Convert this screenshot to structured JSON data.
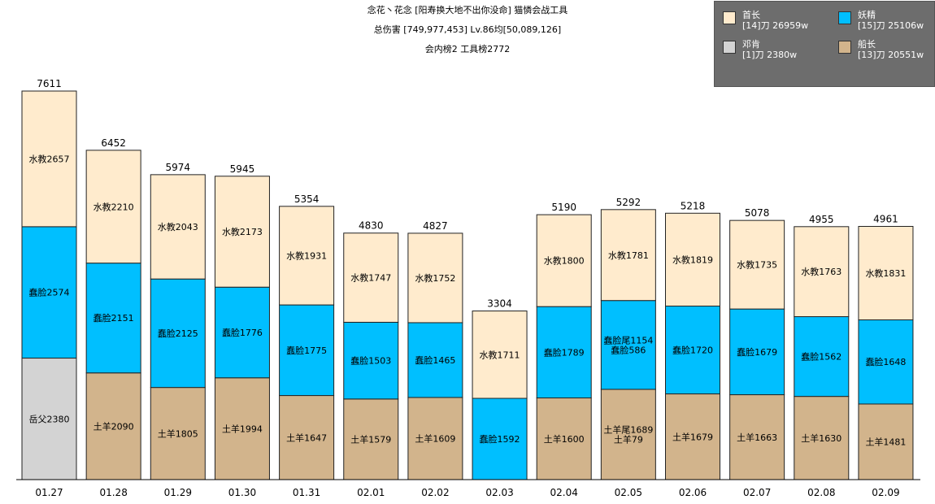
{
  "header": {
    "line1": "念花丶花念 [阳寿换大地不出你没命] 猫憐会战工具",
    "line2": "总伤害 [749,977,453] Lv.86均[50,089,126]",
    "line3": "会内榜2 工具榜2772"
  },
  "legend": [
    {
      "name": "首长",
      "stat": "[14]刀 26959w",
      "color": "#ffebcd"
    },
    {
      "name": "妖精",
      "stat": "[15]刀 25106w",
      "color": "#00bfff"
    },
    {
      "name": "邓肯",
      "stat": "[1]刀 2380w",
      "color": "#d3d3d3"
    },
    {
      "name": "船长",
      "stat": "[13]刀 20551w",
      "color": "#d2b48c"
    }
  ],
  "chart_data": {
    "type": "bar",
    "stacked": true,
    "ylim": [
      0,
      7611
    ],
    "categories": [
      "01.27",
      "01.28",
      "01.29",
      "01.30",
      "01.31",
      "02.01",
      "02.02",
      "02.03",
      "02.04",
      "02.05",
      "02.06",
      "02.07",
      "02.08",
      "02.09"
    ],
    "totals": [
      7611,
      6452,
      5974,
      5945,
      5354,
      4830,
      4827,
      3304,
      5190,
      5292,
      5218,
      5078,
      4955,
      4961
    ],
    "stacks": [
      [
        {
          "boss": "邓肯",
          "value": 2380,
          "labels": [
            "岳父2380"
          ]
        },
        {
          "boss": "妖精",
          "value": 2574,
          "labels": [
            "蠢脸2574"
          ]
        },
        {
          "boss": "首长",
          "value": 2657,
          "labels": [
            "水教2657"
          ]
        }
      ],
      [
        {
          "boss": "船长",
          "value": 2090,
          "labels": [
            "土羊2090"
          ]
        },
        {
          "boss": "妖精",
          "value": 2151,
          "labels": [
            "蠢脸2151"
          ]
        },
        {
          "boss": "首长",
          "value": 2210,
          "labels": [
            "水教2210"
          ]
        }
      ],
      [
        {
          "boss": "船长",
          "value": 1805,
          "labels": [
            "土羊1805"
          ]
        },
        {
          "boss": "妖精",
          "value": 2125,
          "labels": [
            "蠢脸2125"
          ]
        },
        {
          "boss": "首长",
          "value": 2043,
          "labels": [
            "水教2043"
          ]
        }
      ],
      [
        {
          "boss": "船长",
          "value": 1994,
          "labels": [
            "土羊1994"
          ]
        },
        {
          "boss": "妖精",
          "value": 1776,
          "labels": [
            "蠢脸1776"
          ]
        },
        {
          "boss": "首长",
          "value": 2173,
          "labels": [
            "水教2173"
          ]
        }
      ],
      [
        {
          "boss": "船长",
          "value": 1647,
          "labels": [
            "土羊1647"
          ]
        },
        {
          "boss": "妖精",
          "value": 1775,
          "labels": [
            "蠢脸1775"
          ]
        },
        {
          "boss": "首长",
          "value": 1931,
          "labels": [
            "水教1931"
          ]
        }
      ],
      [
        {
          "boss": "船长",
          "value": 1579,
          "labels": [
            "土羊1579"
          ]
        },
        {
          "boss": "妖精",
          "value": 1503,
          "labels": [
            "蠢脸1503"
          ]
        },
        {
          "boss": "首长",
          "value": 1747,
          "labels": [
            "水教1747"
          ]
        }
      ],
      [
        {
          "boss": "船长",
          "value": 1609,
          "labels": [
            "土羊1609"
          ]
        },
        {
          "boss": "妖精",
          "value": 1465,
          "labels": [
            "蠢脸1465"
          ]
        },
        {
          "boss": "首长",
          "value": 1752,
          "labels": [
            "水教1752"
          ]
        }
      ],
      [
        {
          "boss": "妖精",
          "value": 1592,
          "labels": [
            "蠢脸1592"
          ]
        },
        {
          "boss": "首长",
          "value": 1711,
          "labels": [
            "水教1711"
          ]
        }
      ],
      [
        {
          "boss": "船长",
          "value": 1600,
          "labels": [
            "土羊1600"
          ]
        },
        {
          "boss": "妖精",
          "value": 1789,
          "labels": [
            "蠢脸1789"
          ]
        },
        {
          "boss": "首长",
          "value": 1800,
          "labels": [
            "水教1800"
          ]
        }
      ],
      [
        {
          "boss": "船长",
          "value": 1768,
          "labels": [
            "土羊尾1689",
            "土羊79"
          ]
        },
        {
          "boss": "妖精",
          "value": 1740,
          "labels": [
            "蠢脸尾1154",
            "蠢脸586"
          ]
        },
        {
          "boss": "首长",
          "value": 1781,
          "labels": [
            "水教1781"
          ]
        }
      ],
      [
        {
          "boss": "船长",
          "value": 1679,
          "labels": [
            "土羊1679"
          ]
        },
        {
          "boss": "妖精",
          "value": 1720,
          "labels": [
            "蠢脸1720"
          ]
        },
        {
          "boss": "首长",
          "value": 1819,
          "labels": [
            "水教1819"
          ]
        }
      ],
      [
        {
          "boss": "船长",
          "value": 1663,
          "labels": [
            "土羊1663"
          ]
        },
        {
          "boss": "妖精",
          "value": 1679,
          "labels": [
            "蠢脸1679"
          ]
        },
        {
          "boss": "首长",
          "value": 1735,
          "labels": [
            "水教1735"
          ]
        }
      ],
      [
        {
          "boss": "船长",
          "value": 1630,
          "labels": [
            "土羊1630"
          ]
        },
        {
          "boss": "妖精",
          "value": 1562,
          "labels": [
            "蠢脸1562"
          ]
        },
        {
          "boss": "首长",
          "value": 1763,
          "labels": [
            "水教1763"
          ]
        }
      ],
      [
        {
          "boss": "船长",
          "value": 1481,
          "labels": [
            "土羊1481"
          ]
        },
        {
          "boss": "妖精",
          "value": 1648,
          "labels": [
            "蠢脸1648"
          ]
        },
        {
          "boss": "首长",
          "value": 1831,
          "labels": [
            "水教1831"
          ]
        }
      ]
    ]
  }
}
